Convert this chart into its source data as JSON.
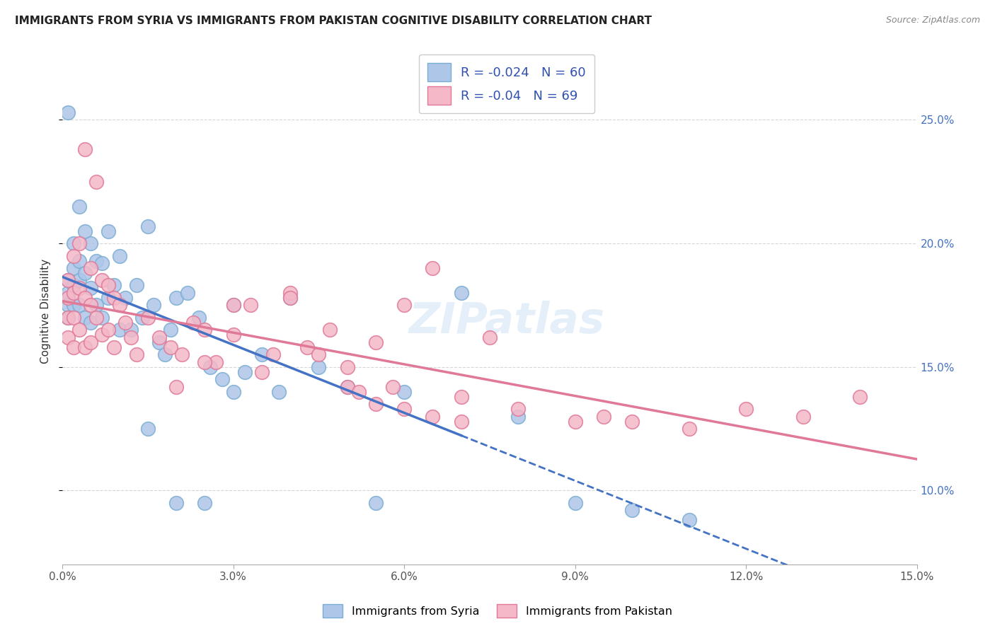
{
  "title": "IMMIGRANTS FROM SYRIA VS IMMIGRANTS FROM PAKISTAN COGNITIVE DISABILITY CORRELATION CHART",
  "source": "Source: ZipAtlas.com",
  "ylabel": "Cognitive Disability",
  "y_ticks": [
    0.1,
    0.15,
    0.2,
    0.25
  ],
  "y_tick_labels": [
    "10.0%",
    "15.0%",
    "20.0%",
    "25.0%"
  ],
  "x_range": [
    0.0,
    0.15
  ],
  "y_range": [
    0.07,
    0.275
  ],
  "syria_color": "#aec6e8",
  "syria_edge_color": "#7aadd4",
  "pakistan_color": "#f4b8c8",
  "pakistan_edge_color": "#e07898",
  "syria_R": -0.024,
  "syria_N": 60,
  "pakistan_R": -0.04,
  "pakistan_N": 69,
  "syria_line_color": "#4472c4",
  "pakistan_line_color": "#e07898",
  "watermark": "ZIPatlas",
  "syria_x": [
    0.001,
    0.001,
    0.001,
    0.001,
    0.001,
    0.002,
    0.002,
    0.002,
    0.002,
    0.003,
    0.003,
    0.003,
    0.003,
    0.004,
    0.004,
    0.004,
    0.005,
    0.005,
    0.005,
    0.006,
    0.006,
    0.007,
    0.007,
    0.008,
    0.008,
    0.009,
    0.01,
    0.01,
    0.011,
    0.012,
    0.013,
    0.014,
    0.015,
    0.016,
    0.017,
    0.018,
    0.019,
    0.02,
    0.022,
    0.024,
    0.026,
    0.028,
    0.03,
    0.032,
    0.035,
    0.038,
    0.04,
    0.045,
    0.05,
    0.055,
    0.06,
    0.07,
    0.08,
    0.09,
    0.1,
    0.11,
    0.015,
    0.02,
    0.025,
    0.03
  ],
  "syria_y": [
    0.253,
    0.185,
    0.18,
    0.175,
    0.17,
    0.2,
    0.19,
    0.183,
    0.175,
    0.215,
    0.193,
    0.185,
    0.175,
    0.205,
    0.188,
    0.17,
    0.2,
    0.182,
    0.168,
    0.193,
    0.175,
    0.192,
    0.17,
    0.205,
    0.178,
    0.183,
    0.195,
    0.165,
    0.178,
    0.165,
    0.183,
    0.17,
    0.207,
    0.175,
    0.16,
    0.155,
    0.165,
    0.178,
    0.18,
    0.17,
    0.15,
    0.145,
    0.14,
    0.148,
    0.155,
    0.14,
    0.178,
    0.15,
    0.142,
    0.095,
    0.14,
    0.18,
    0.13,
    0.095,
    0.092,
    0.088,
    0.125,
    0.095,
    0.095,
    0.175
  ],
  "pakistan_x": [
    0.001,
    0.001,
    0.001,
    0.001,
    0.002,
    0.002,
    0.002,
    0.002,
    0.003,
    0.003,
    0.003,
    0.004,
    0.004,
    0.004,
    0.005,
    0.005,
    0.005,
    0.006,
    0.006,
    0.007,
    0.007,
    0.008,
    0.008,
    0.009,
    0.009,
    0.01,
    0.011,
    0.012,
    0.013,
    0.015,
    0.017,
    0.019,
    0.021,
    0.023,
    0.025,
    0.027,
    0.03,
    0.033,
    0.037,
    0.04,
    0.043,
    0.047,
    0.05,
    0.055,
    0.06,
    0.065,
    0.07,
    0.075,
    0.08,
    0.09,
    0.095,
    0.1,
    0.11,
    0.12,
    0.13,
    0.02,
    0.025,
    0.03,
    0.035,
    0.04,
    0.05,
    0.055,
    0.06,
    0.065,
    0.07,
    0.045,
    0.052,
    0.058,
    0.14
  ],
  "pakistan_y": [
    0.185,
    0.178,
    0.17,
    0.162,
    0.195,
    0.18,
    0.17,
    0.158,
    0.2,
    0.182,
    0.165,
    0.238,
    0.178,
    0.158,
    0.19,
    0.175,
    0.16,
    0.225,
    0.17,
    0.185,
    0.163,
    0.183,
    0.165,
    0.178,
    0.158,
    0.175,
    0.168,
    0.162,
    0.155,
    0.17,
    0.162,
    0.158,
    0.155,
    0.168,
    0.165,
    0.152,
    0.163,
    0.175,
    0.155,
    0.18,
    0.158,
    0.165,
    0.142,
    0.16,
    0.175,
    0.19,
    0.138,
    0.162,
    0.133,
    0.128,
    0.13,
    0.128,
    0.125,
    0.133,
    0.13,
    0.142,
    0.152,
    0.175,
    0.148,
    0.178,
    0.15,
    0.135,
    0.133,
    0.13,
    0.128,
    0.155,
    0.14,
    0.142,
    0.138
  ]
}
